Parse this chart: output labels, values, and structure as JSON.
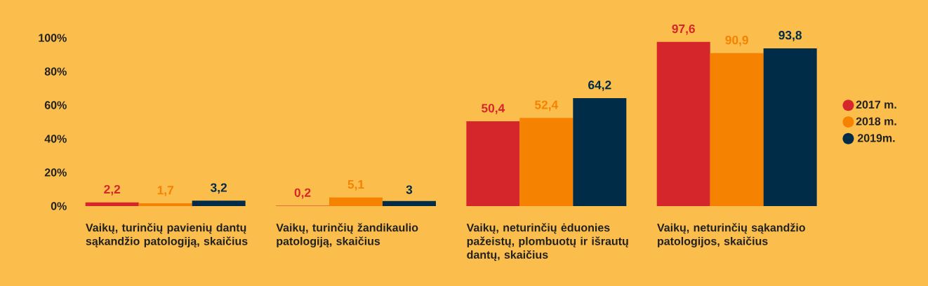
{
  "chart_data": {
    "type": "bar",
    "categories": [
      "Vaikų, turinčių pavienių dantų sąkandžio patologiją, skaičius",
      "Vaikų, turinčių žandikaulio patologiją, skaičius",
      "Vaikų, neturinčių ėduonies pažeistų, plombuotų ir išrautų dantų, skaičius",
      "Vaikų, neturinčių sąkandžio patologijos, skaičius"
    ],
    "series": [
      {
        "name": "2017 m.",
        "color": "#d5272b",
        "values": [
          2.2,
          0.2,
          50.4,
          97.6
        ],
        "value_labels": [
          "2,2",
          "0,2",
          "50,4",
          "97,6"
        ]
      },
      {
        "name": "2018 m.",
        "color": "#f58200",
        "values": [
          1.7,
          5.1,
          52.4,
          90.9
        ],
        "value_labels": [
          "1,7",
          "5,1",
          "52,4",
          "90,9"
        ]
      },
      {
        "name": "2019m.",
        "color": "#002c48",
        "values": [
          3.2,
          3,
          64.2,
          93.8
        ],
        "value_labels": [
          "3,2",
          "3",
          "64,2",
          "93,8"
        ]
      }
    ],
    "ylim": [
      0,
      100
    ],
    "yticks": [
      {
        "value": 0,
        "label": "0%"
      },
      {
        "value": 20,
        "label": "20%"
      },
      {
        "value": 40,
        "label": "40%"
      },
      {
        "value": 60,
        "label": "60%"
      },
      {
        "value": 80,
        "label": "80%"
      },
      {
        "value": 100,
        "label": "100%"
      }
    ],
    "grid": false,
    "legend": "right"
  }
}
